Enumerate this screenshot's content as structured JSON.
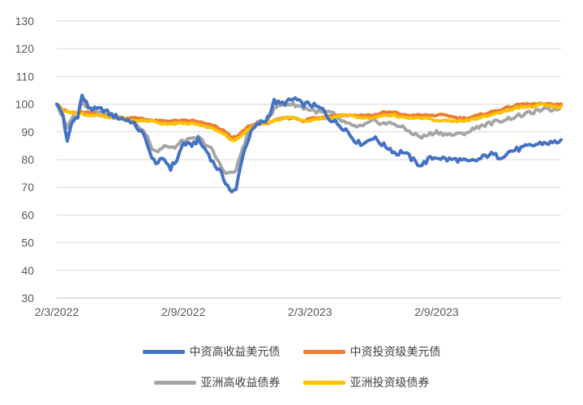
{
  "chart_data": {
    "type": "line",
    "xlabel": "",
    "ylabel": "",
    "ylim": [
      30,
      130
    ],
    "yticks": [
      30,
      40,
      50,
      60,
      70,
      80,
      90,
      100,
      110,
      120,
      130
    ],
    "xticks": [
      {
        "label": "2/3/2022",
        "index": 0
      },
      {
        "label": "2/9/2022",
        "index": 60
      },
      {
        "label": "2/3/2023",
        "index": 120
      },
      {
        "label": "2/9/2023",
        "index": 180
      }
    ],
    "x_count": 240,
    "grid": true,
    "legend_position": "bottom",
    "series": [
      {
        "name": "中资高收益美元债",
        "color": "#4472C4",
        "points": [
          [
            0,
            100
          ],
          [
            3,
            96
          ],
          [
            5,
            86
          ],
          [
            7,
            93
          ],
          [
            10,
            96
          ],
          [
            12,
            103
          ],
          [
            15,
            99
          ],
          [
            18,
            98
          ],
          [
            22,
            98
          ],
          [
            26,
            96
          ],
          [
            30,
            95
          ],
          [
            35,
            94
          ],
          [
            40,
            90
          ],
          [
            43,
            86
          ],
          [
            45,
            80
          ],
          [
            48,
            79
          ],
          [
            51,
            80
          ],
          [
            54,
            77
          ],
          [
            57,
            80
          ],
          [
            60,
            86
          ],
          [
            63,
            85
          ],
          [
            67,
            87
          ],
          [
            70,
            84
          ],
          [
            72,
            82
          ],
          [
            74,
            79
          ],
          [
            77,
            76
          ],
          [
            80,
            72
          ],
          [
            83,
            68
          ],
          [
            85,
            69
          ],
          [
            87,
            78
          ],
          [
            90,
            86
          ],
          [
            93,
            91
          ],
          [
            96,
            93
          ],
          [
            99,
            94
          ],
          [
            101,
            97
          ],
          [
            103,
            101
          ],
          [
            106,
            100
          ],
          [
            110,
            101
          ],
          [
            113,
            102
          ],
          [
            116,
            100
          ],
          [
            120,
            100
          ],
          [
            123,
            99
          ],
          [
            126,
            98
          ],
          [
            129,
            95
          ],
          [
            133,
            93
          ],
          [
            137,
            91
          ],
          [
            140,
            88
          ],
          [
            143,
            86
          ],
          [
            146,
            86
          ],
          [
            149,
            88
          ],
          [
            152,
            87
          ],
          [
            155,
            85
          ],
          [
            158,
            84
          ],
          [
            161,
            82
          ],
          [
            164,
            83
          ],
          [
            167,
            81
          ],
          [
            170,
            79
          ],
          [
            173,
            78
          ],
          [
            176,
            80
          ],
          [
            180,
            81
          ],
          [
            185,
            80
          ],
          [
            190,
            80
          ],
          [
            195,
            79
          ],
          [
            200,
            80
          ],
          [
            205,
            82
          ],
          [
            210,
            81
          ],
          [
            215,
            83
          ],
          [
            220,
            84
          ],
          [
            225,
            85
          ],
          [
            230,
            86
          ],
          [
            235,
            86
          ],
          [
            239,
            87
          ]
        ]
      },
      {
        "name": "中资投资级美元债",
        "color": "#ED7D31",
        "points": [
          [
            0,
            100
          ],
          [
            3,
            98
          ],
          [
            6,
            97
          ],
          [
            10,
            97
          ],
          [
            15,
            97
          ],
          [
            20,
            96
          ],
          [
            25,
            96
          ],
          [
            30,
            95
          ],
          [
            35,
            95
          ],
          [
            40,
            95
          ],
          [
            45,
            94
          ],
          [
            50,
            94
          ],
          [
            55,
            94
          ],
          [
            60,
            94
          ],
          [
            65,
            94
          ],
          [
            70,
            93
          ],
          [
            75,
            92
          ],
          [
            80,
            90
          ],
          [
            83,
            88
          ],
          [
            85,
            88
          ],
          [
            88,
            90
          ],
          [
            91,
            92
          ],
          [
            95,
            93
          ],
          [
            99,
            93
          ],
          [
            103,
            94
          ],
          [
            108,
            95
          ],
          [
            113,
            95
          ],
          [
            117,
            94
          ],
          [
            121,
            95
          ],
          [
            125,
            95
          ],
          [
            130,
            96
          ],
          [
            135,
            96
          ],
          [
            140,
            96
          ],
          [
            145,
            96
          ],
          [
            150,
            96
          ],
          [
            155,
            97
          ],
          [
            160,
            97
          ],
          [
            165,
            96
          ],
          [
            170,
            96
          ],
          [
            175,
            96
          ],
          [
            180,
            96
          ],
          [
            185,
            96
          ],
          [
            190,
            95
          ],
          [
            195,
            95
          ],
          [
            200,
            96
          ],
          [
            205,
            97
          ],
          [
            210,
            98
          ],
          [
            215,
            99
          ],
          [
            220,
            100
          ],
          [
            225,
            100
          ],
          [
            230,
            100
          ],
          [
            235,
            100
          ],
          [
            239,
            100
          ]
        ]
      },
      {
        "name": "亚洲高收益债券",
        "color": "#A5A5A5",
        "points": [
          [
            0,
            100
          ],
          [
            3,
            95
          ],
          [
            5,
            91
          ],
          [
            7,
            95
          ],
          [
            10,
            96
          ],
          [
            12,
            101
          ],
          [
            15,
            99
          ],
          [
            18,
            98
          ],
          [
            22,
            97
          ],
          [
            26,
            96
          ],
          [
            30,
            95
          ],
          [
            35,
            94
          ],
          [
            40,
            91
          ],
          [
            43,
            89
          ],
          [
            45,
            84
          ],
          [
            48,
            83
          ],
          [
            51,
            85
          ],
          [
            54,
            84
          ],
          [
            57,
            85
          ],
          [
            60,
            87
          ],
          [
            63,
            87
          ],
          [
            67,
            88
          ],
          [
            70,
            86
          ],
          [
            73,
            84
          ],
          [
            76,
            80
          ],
          [
            79,
            76
          ],
          [
            82,
            75
          ],
          [
            85,
            76
          ],
          [
            88,
            84
          ],
          [
            91,
            90
          ],
          [
            95,
            93
          ],
          [
            99,
            94
          ],
          [
            102,
            97
          ],
          [
            104,
            99
          ],
          [
            108,
            100
          ],
          [
            112,
            100
          ],
          [
            116,
            99
          ],
          [
            120,
            98
          ],
          [
            125,
            97
          ],
          [
            130,
            97
          ],
          [
            135,
            94
          ],
          [
            140,
            92
          ],
          [
            145,
            92
          ],
          [
            150,
            94
          ],
          [
            155,
            93
          ],
          [
            160,
            93
          ],
          [
            165,
            91
          ],
          [
            170,
            89
          ],
          [
            173,
            88
          ],
          [
            176,
            89
          ],
          [
            180,
            90
          ],
          [
            185,
            89
          ],
          [
            190,
            89
          ],
          [
            195,
            90
          ],
          [
            200,
            92
          ],
          [
            205,
            93
          ],
          [
            210,
            94
          ],
          [
            215,
            95
          ],
          [
            220,
            96
          ],
          [
            225,
            97
          ],
          [
            230,
            98
          ],
          [
            235,
            98
          ],
          [
            239,
            99
          ]
        ]
      },
      {
        "name": "亚洲投资级债券",
        "color": "#FFC000",
        "points": [
          [
            0,
            100
          ],
          [
            3,
            98
          ],
          [
            6,
            97
          ],
          [
            10,
            97
          ],
          [
            15,
            96
          ],
          [
            20,
            96
          ],
          [
            25,
            95
          ],
          [
            30,
            95
          ],
          [
            35,
            94
          ],
          [
            40,
            94
          ],
          [
            45,
            94
          ],
          [
            50,
            93
          ],
          [
            55,
            93
          ],
          [
            60,
            93
          ],
          [
            65,
            93
          ],
          [
            70,
            92
          ],
          [
            75,
            91
          ],
          [
            80,
            89
          ],
          [
            83,
            87
          ],
          [
            85,
            87
          ],
          [
            88,
            89
          ],
          [
            91,
            91
          ],
          [
            95,
            93
          ],
          [
            99,
            93
          ],
          [
            103,
            94
          ],
          [
            108,
            95
          ],
          [
            113,
            95
          ],
          [
            117,
            94
          ],
          [
            121,
            94
          ],
          [
            125,
            95
          ],
          [
            130,
            95
          ],
          [
            135,
            96
          ],
          [
            140,
            96
          ],
          [
            145,
            95
          ],
          [
            150,
            95
          ],
          [
            155,
            96
          ],
          [
            160,
            96
          ],
          [
            165,
            95
          ],
          [
            170,
            95
          ],
          [
            175,
            95
          ],
          [
            180,
            94
          ],
          [
            185,
            94
          ],
          [
            190,
            94
          ],
          [
            195,
            94
          ],
          [
            200,
            95
          ],
          [
            205,
            96
          ],
          [
            210,
            97
          ],
          [
            215,
            98
          ],
          [
            220,
            99
          ],
          [
            225,
            99
          ],
          [
            230,
            100
          ],
          [
            235,
            99
          ],
          [
            239,
            99
          ]
        ]
      }
    ]
  }
}
